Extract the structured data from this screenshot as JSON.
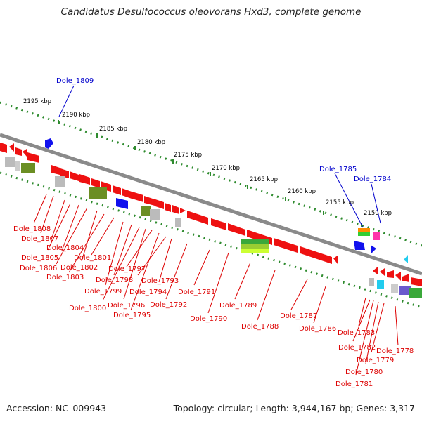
{
  "title": "Candidatus Desulfococcus oleovorans Hxd3, complete genome",
  "footer": {
    "accession": "Accession: NC_009943",
    "info": "Topology: circular; Length: 3,944,167 bp; Genes: 3,317"
  },
  "scale_labels": [
    "2195 kbp",
    "2190 kbp",
    "2185 kbp",
    "2180 kbp",
    "2175 kbp",
    "2170 kbp",
    "2165 kbp",
    "2160 kbp",
    "2155 kbp",
    "2150 kbp"
  ],
  "genes_blue": [
    "Dole_1809",
    "Dole_1785",
    "Dole_1784"
  ],
  "genes_red": [
    "Dole_1808",
    "Dole_1807",
    "Dole_1804",
    "Dole_1805",
    "Dole_1801",
    "Dole_1806",
    "Dole_1802",
    "Dole_1803",
    "Dole_1797",
    "Dole_1798",
    "Dole_1793",
    "Dole_1799",
    "Dole_1794",
    "Dole_1791",
    "Dole_1800",
    "Dole_1796",
    "Dole_1792",
    "Dole_1795",
    "Dole_1789",
    "Dole_1790",
    "Dole_1787",
    "Dole_1788",
    "Dole_1786",
    "Dole_1783",
    "Dole_1782",
    "Dole_1778",
    "Dole_1779",
    "Dole_1780",
    "Dole_1781"
  ],
  "colors": {
    "backbone": "#888888",
    "scale_dots": "#2e8b2e",
    "gene_red": "#ee1111",
    "label_red": "#dd0000",
    "label_blue": "#0000cc",
    "gene_blue": "#1111ee",
    "gene_olive": "#6b8e23",
    "gene_gray": "#bbbbbb",
    "gene_green_stripe": "#9acd32",
    "gene_orange": "#ff8c00",
    "gene_magenta": "#ff33aa",
    "gene_cyan": "#22ccee",
    "gene_purple": "#6a5acd"
  }
}
